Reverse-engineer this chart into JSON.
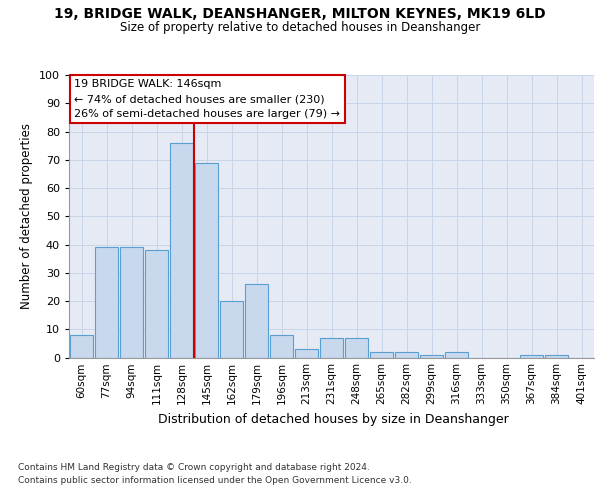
{
  "title1": "19, BRIDGE WALK, DEANSHANGER, MILTON KEYNES, MK19 6LD",
  "title2": "Size of property relative to detached houses in Deanshanger",
  "xlabel": "Distribution of detached houses by size in Deanshanger",
  "ylabel": "Number of detached properties",
  "categories": [
    "60sqm",
    "77sqm",
    "94sqm",
    "111sqm",
    "128sqm",
    "145sqm",
    "162sqm",
    "179sqm",
    "196sqm",
    "213sqm",
    "231sqm",
    "248sqm",
    "265sqm",
    "282sqm",
    "299sqm",
    "316sqm",
    "333sqm",
    "350sqm",
    "367sqm",
    "384sqm",
    "401sqm"
  ],
  "values": [
    8,
    39,
    39,
    38,
    76,
    69,
    20,
    26,
    8,
    3,
    7,
    7,
    2,
    2,
    1,
    2,
    0,
    0,
    1,
    1,
    0
  ],
  "bar_color": "#c8d9ed",
  "bar_edge_color": "#5a9fd4",
  "vline_index": 5,
  "annotation_text": "19 BRIDGE WALK: 146sqm\n← 74% of detached houses are smaller (230)\n26% of semi-detached houses are larger (79) →",
  "vline_color": "#cc0000",
  "annotation_edge_color": "#cc0000",
  "ylim_max": 100,
  "yticks": [
    0,
    10,
    20,
    30,
    40,
    50,
    60,
    70,
    80,
    90,
    100
  ],
  "grid_color": "#c8d4e8",
  "background_color": "#e5eaf5",
  "footer1": "Contains HM Land Registry data © Crown copyright and database right 2024.",
  "footer2": "Contains public sector information licensed under the Open Government Licence v3.0."
}
